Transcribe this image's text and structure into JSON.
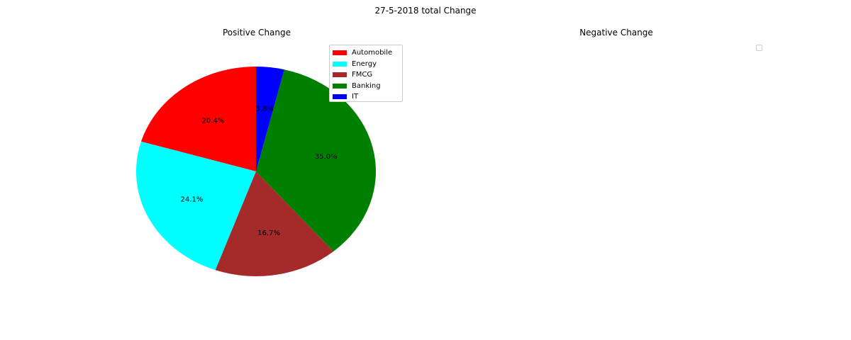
{
  "figure": {
    "suptitle": "27-5-2018 total Change"
  },
  "chart_data": [
    {
      "type": "pie",
      "title": "Positive Change",
      "categories": [
        "Automobile",
        "Energy",
        "FMCG",
        "Banking",
        "IT"
      ],
      "values": [
        20.4,
        24.1,
        16.7,
        35.0,
        3.8
      ],
      "labels": [
        "20.4%",
        "24.1%",
        "16.7%",
        "35.0%",
        "3.8%"
      ],
      "colors": [
        "#ff0000",
        "#00ffff",
        "#a52a2a",
        "#008000",
        "#0000ff"
      ],
      "start_angle_deg": 90,
      "direction": "counterclockwise",
      "legend": {
        "entries": [
          "Automobile",
          "Energy",
          "FMCG",
          "Banking",
          "IT"
        ],
        "placement": "upper-right"
      }
    },
    {
      "type": "pie",
      "title": "Negative Change",
      "categories": [],
      "values": [],
      "legend": {
        "entries": [],
        "placement": "upper-right"
      }
    }
  ]
}
